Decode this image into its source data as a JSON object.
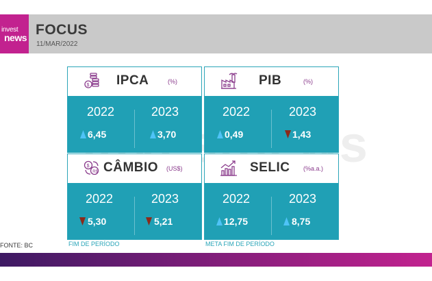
{
  "header": {
    "logo_line1": "invest",
    "logo_line2": "news",
    "title": "FOCUS",
    "date": "11/MAR/2022"
  },
  "watermark": "investnews",
  "colors": {
    "accent": "#20a0b5",
    "brand": "#c2228f",
    "up_arrow": "#4fc3f7",
    "down_arrow": "#8b2a1a"
  },
  "cards": [
    {
      "name": "IPCA",
      "unit": "(%)",
      "icon": "coins-icon",
      "y1": "2022",
      "v1": "6,45",
      "dir1": "up",
      "y2": "2023",
      "v2": "3,70",
      "dir2": "up"
    },
    {
      "name": "PIB",
      "unit": "(%)",
      "icon": "factory-icon",
      "y1": "2022",
      "v1": "0,49",
      "dir1": "up",
      "y2": "2023",
      "v2": "1,43",
      "dir2": "down"
    },
    {
      "name": "CÂMBIO",
      "unit": "(US$)",
      "icon": "currency-exchange-icon",
      "y1": "2022",
      "v1": "5,30",
      "dir1": "down",
      "y2": "2023",
      "v2": "5,21",
      "dir2": "down"
    },
    {
      "name": "SELIC",
      "unit": "(%a.a.)",
      "icon": "chart-growth-icon",
      "y1": "2022",
      "v1": "12,75",
      "dir1": "up",
      "y2": "2023",
      "v2": "8,75",
      "dir2": "up"
    }
  ],
  "notes": {
    "source": "FONTE: BC",
    "cambio_note": "FIM DE PERÍODO",
    "selic_note": "META FIM DE PERÍODO"
  }
}
